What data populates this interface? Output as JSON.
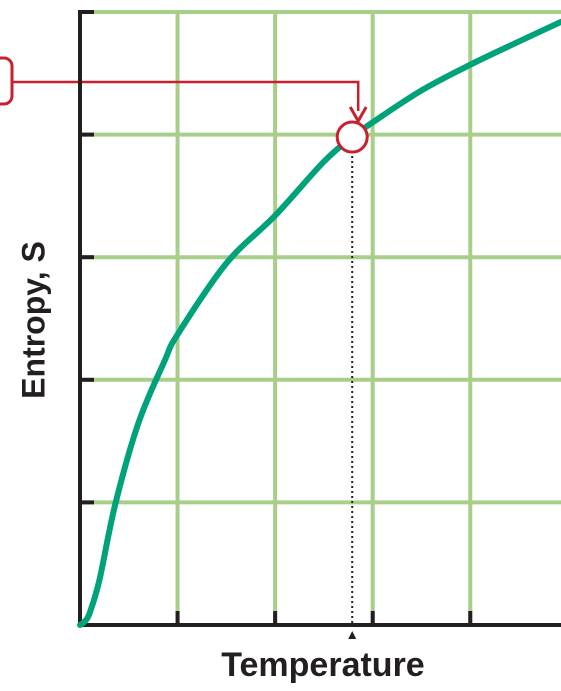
{
  "chart_data": {
    "type": "line",
    "x_label": "Temperature",
    "y_label": "Entropy, S",
    "xlim": [
      0,
      4.93
    ],
    "ylim": [
      0,
      5
    ],
    "xticks": [
      0,
      1,
      2,
      3,
      4
    ],
    "yticks": [
      0,
      1,
      2,
      3,
      4,
      5
    ],
    "grid": true,
    "grid_color": "#a8cf8a",
    "series": [
      {
        "color": "#00a27a",
        "x": [
          0,
          0.05,
          0.1,
          0.2,
          0.36,
          0.6,
          0.87,
          1.0,
          1.5,
          2.0,
          2.5,
          2.79,
          3.0,
          3.5,
          4.0,
          4.5,
          4.93
        ],
        "values": [
          0,
          0.03,
          0.1,
          0.37,
          0.98,
          1.65,
          2.16,
          2.37,
          2.95,
          3.34,
          3.78,
          3.98,
          4.1,
          4.36,
          4.57,
          4.76,
          4.92
        ]
      }
    ],
    "marker": {
      "x": 2.79,
      "y": 3.98,
      "color": "#c8202f"
    }
  }
}
